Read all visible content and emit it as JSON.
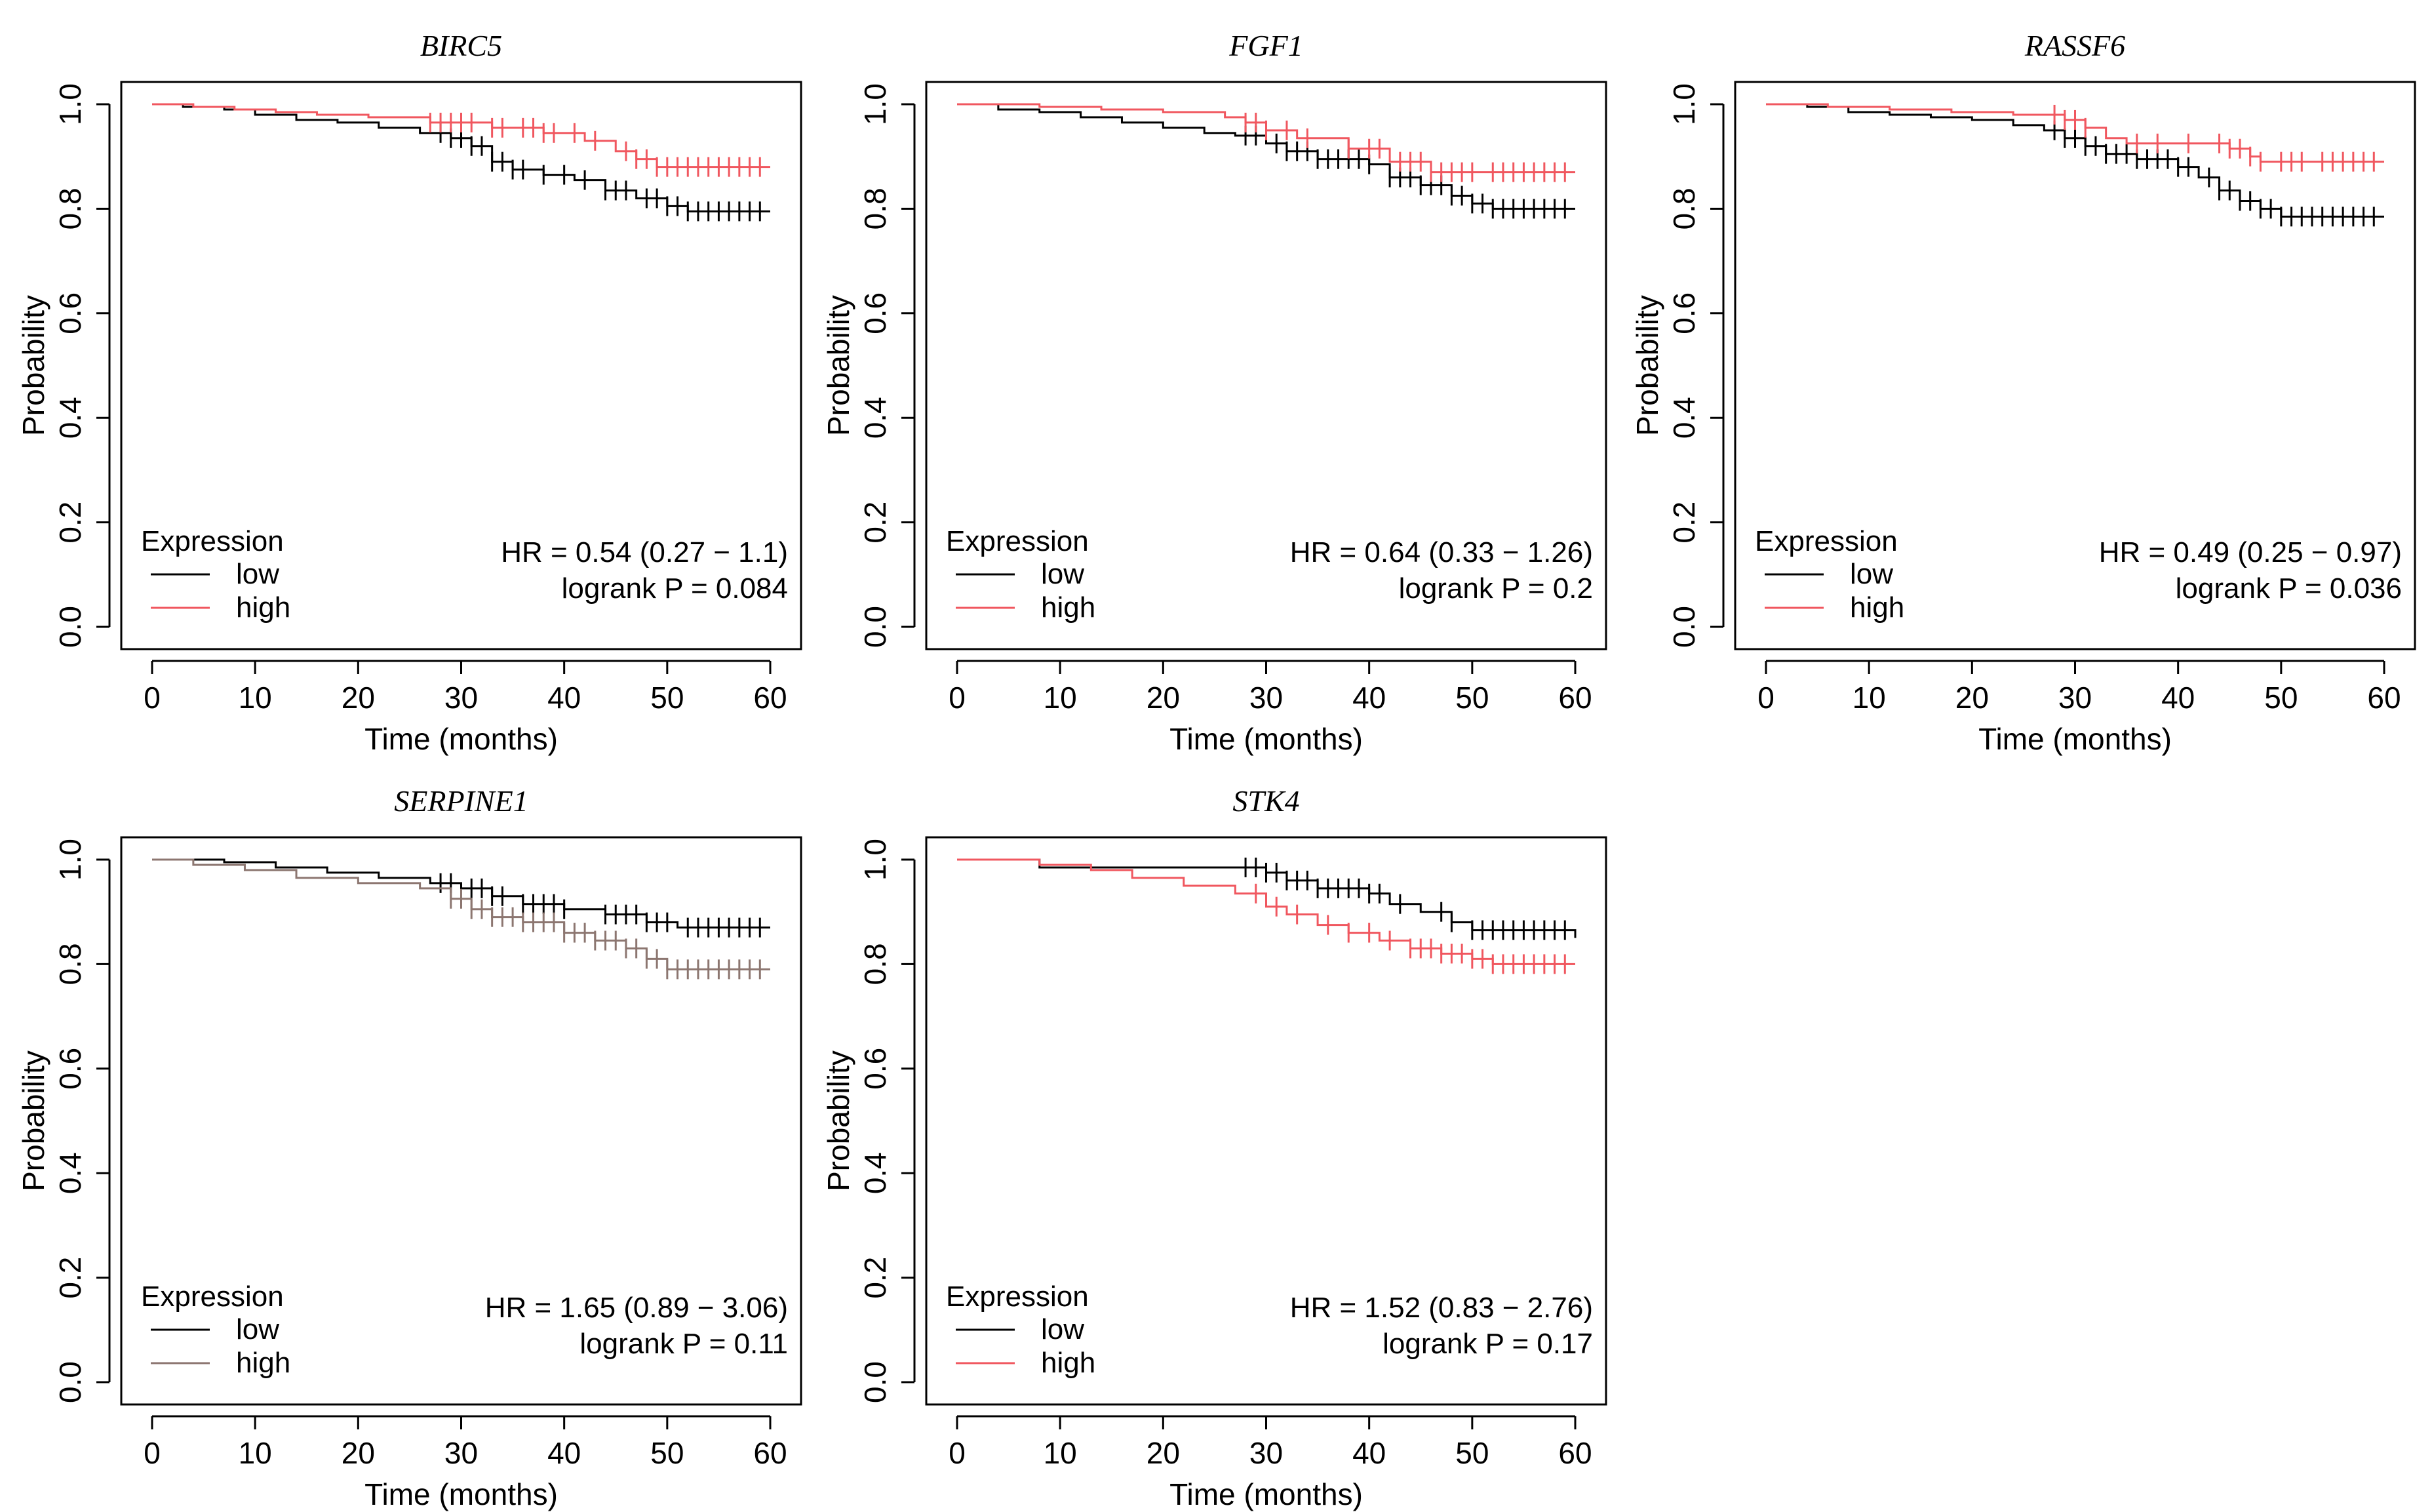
{
  "figure": {
    "colors": {
      "low": "#000000",
      "high_red": "#f0575f",
      "high_brown": "#8c7670"
    },
    "chart_data": [
      {
        "type": "line",
        "kind": "kaplan-meier",
        "title": "BIRC5",
        "xlabel": "Time (months)",
        "ylabel": "Probability",
        "xlim": [
          0,
          60
        ],
        "ylim": [
          0,
          1
        ],
        "xticks": [
          "0",
          "10",
          "20",
          "30",
          "40",
          "50",
          "60"
        ],
        "yticks": [
          "0.0",
          "0.2",
          "0.4",
          "0.6",
          "0.8",
          "1.0"
        ],
        "legend_title": "Expression",
        "legend_position": "bottom-left",
        "hr_text": "HR = 0.54 (0.27 − 1.1)",
        "p_text": "logrank P = 0.084",
        "series": [
          {
            "name": "low",
            "color": "#000000",
            "x": [
              0,
              3,
              7,
              10,
              14,
              18,
              22,
              26,
              29,
              31,
              33,
              35,
              38,
              41,
              44,
              47,
              50,
              52,
              60
            ],
            "y": [
              1.0,
              0.995,
              0.99,
              0.98,
              0.97,
              0.965,
              0.955,
              0.945,
              0.935,
              0.92,
              0.89,
              0.875,
              0.865,
              0.855,
              0.835,
              0.82,
              0.805,
              0.795,
              0.795
            ],
            "censor_x": [
              28,
              29,
              30,
              31,
              32,
              33,
              34,
              35,
              36,
              38,
              40,
              42,
              44,
              45,
              46,
              48,
              49,
              50,
              51,
              52,
              53,
              54,
              55,
              56,
              57,
              58,
              59
            ]
          },
          {
            "name": "high",
            "color": "#f0575f",
            "x": [
              0,
              4,
              8,
              12,
              16,
              21,
              27,
              33,
              38,
              42,
              45,
              47,
              49,
              51,
              60
            ],
            "y": [
              1.0,
              0.995,
              0.99,
              0.985,
              0.98,
              0.975,
              0.965,
              0.955,
              0.945,
              0.93,
              0.91,
              0.895,
              0.88,
              0.88,
              0.88
            ],
            "censor_x": [
              27,
              28,
              29,
              30,
              31,
              33,
              34,
              36,
              37,
              38,
              39,
              41,
              43,
              46,
              47,
              48,
              49,
              50,
              51,
              52,
              53,
              54,
              55,
              56,
              57,
              58,
              59
            ]
          }
        ]
      },
      {
        "type": "line",
        "kind": "kaplan-meier",
        "title": "FGF1",
        "xlabel": "Time (months)",
        "ylabel": "Probability",
        "xlim": [
          0,
          60
        ],
        "ylim": [
          0,
          1
        ],
        "xticks": [
          "0",
          "10",
          "20",
          "30",
          "40",
          "50",
          "60"
        ],
        "yticks": [
          "0.0",
          "0.2",
          "0.4",
          "0.6",
          "0.8",
          "1.0"
        ],
        "legend_title": "Expression",
        "legend_position": "bottom-left",
        "hr_text": "HR = 0.64 (0.33 − 1.26)",
        "p_text": "logrank P = 0.2",
        "series": [
          {
            "name": "low",
            "color": "#000000",
            "x": [
              0,
              4,
              8,
              12,
              16,
              20,
              24,
              27,
              30,
              32,
              35,
              40,
              42,
              45,
              48,
              50,
              52,
              60
            ],
            "y": [
              1.0,
              0.99,
              0.985,
              0.975,
              0.965,
              0.955,
              0.945,
              0.94,
              0.925,
              0.91,
              0.895,
              0.885,
              0.86,
              0.845,
              0.825,
              0.81,
              0.8,
              0.8
            ],
            "censor_x": [
              28,
              29,
              31,
              32,
              33,
              34,
              35,
              36,
              37,
              38,
              39,
              40,
              42,
              43,
              44,
              45,
              46,
              47,
              48,
              49,
              50,
              51,
              52,
              53,
              54,
              55,
              56,
              57,
              58,
              59
            ]
          },
          {
            "name": "high",
            "color": "#f0575f",
            "x": [
              0,
              8,
              14,
              20,
              26,
              28,
              30,
              33,
              38,
              42,
              46,
              60
            ],
            "y": [
              1.0,
              0.995,
              0.99,
              0.985,
              0.975,
              0.965,
              0.95,
              0.935,
              0.915,
              0.89,
              0.87,
              0.87
            ],
            "censor_x": [
              28,
              29,
              30,
              32,
              34,
              38,
              40,
              41,
              43,
              44,
              45,
              46,
              47,
              48,
              49,
              50,
              52,
              53,
              54,
              55,
              56,
              57,
              58,
              59
            ]
          }
        ]
      },
      {
        "type": "line",
        "kind": "kaplan-meier",
        "title": "RASSF6",
        "xlabel": "Time (months)",
        "ylabel": "Probability",
        "xlim": [
          0,
          60
        ],
        "ylim": [
          0,
          1
        ],
        "xticks": [
          "0",
          "10",
          "20",
          "30",
          "40",
          "50",
          "60"
        ],
        "yticks": [
          "0.0",
          "0.2",
          "0.4",
          "0.6",
          "0.8",
          "1.0"
        ],
        "legend_title": "Expression",
        "legend_position": "bottom-left",
        "hr_text": "HR = 0.49 (0.25 − 0.97)",
        "p_text": "logrank P = 0.036",
        "series": [
          {
            "name": "low",
            "color": "#000000",
            "x": [
              0,
              4,
              8,
              12,
              16,
              20,
              24,
              27,
              29,
              31,
              33,
              36,
              40,
              42,
              44,
              46,
              48,
              50,
              60
            ],
            "y": [
              1.0,
              0.995,
              0.985,
              0.98,
              0.975,
              0.97,
              0.96,
              0.95,
              0.935,
              0.92,
              0.905,
              0.895,
              0.88,
              0.86,
              0.835,
              0.815,
              0.8,
              0.785,
              0.785
            ],
            "censor_x": [
              28,
              29,
              30,
              31,
              32,
              33,
              34,
              35,
              36,
              37,
              38,
              39,
              40,
              41,
              43,
              44,
              45,
              46,
              47,
              48,
              49,
              50,
              51,
              52,
              53,
              54,
              55,
              56,
              57,
              58,
              59
            ]
          },
          {
            "name": "high",
            "color": "#f0575f",
            "x": [
              0,
              6,
              12,
              18,
              24,
              29,
              31,
              33,
              35,
              45,
              47,
              48,
              60
            ],
            "y": [
              1.0,
              0.995,
              0.99,
              0.985,
              0.98,
              0.97,
              0.955,
              0.935,
              0.925,
              0.915,
              0.9,
              0.89,
              0.89
            ],
            "censor_x": [
              28,
              29,
              30,
              31,
              36,
              38,
              41,
              44,
              45,
              46,
              47,
              48,
              50,
              51,
              52,
              54,
              55,
              56,
              57,
              58,
              59
            ]
          }
        ]
      },
      {
        "type": "line",
        "kind": "kaplan-meier",
        "title": "SERPINE1",
        "xlabel": "Time (months)",
        "ylabel": "Probability",
        "xlim": [
          0,
          60
        ],
        "ylim": [
          0,
          1
        ],
        "xticks": [
          "0",
          "10",
          "20",
          "30",
          "40",
          "50",
          "60"
        ],
        "yticks": [
          "0.0",
          "0.2",
          "0.4",
          "0.6",
          "0.8",
          "1.0"
        ],
        "legend_title": "Expression",
        "legend_position": "bottom-left",
        "hr_text": "HR = 1.65 (0.89 − 3.06)",
        "p_text": "logrank P = 0.11",
        "series": [
          {
            "name": "low",
            "color": "#000000",
            "x": [
              0,
              7,
              12,
              17,
              22,
              27,
              30,
              33,
              36,
              40,
              44,
              48,
              51,
              60
            ],
            "y": [
              1.0,
              0.995,
              0.985,
              0.975,
              0.965,
              0.955,
              0.945,
              0.93,
              0.915,
              0.905,
              0.895,
              0.88,
              0.87,
              0.87
            ],
            "censor_x": [
              28,
              29,
              31,
              32,
              33,
              34,
              36,
              37,
              38,
              39,
              40,
              44,
              45,
              46,
              47,
              48,
              49,
              50,
              52,
              53,
              54,
              55,
              56,
              57,
              58,
              59
            ]
          },
          {
            "name": "high",
            "color": "#8c7670",
            "x": [
              0,
              4,
              9,
              14,
              20,
              26,
              29,
              31,
              33,
              36,
              40,
              43,
              46,
              48,
              50,
              60
            ],
            "y": [
              1.0,
              0.99,
              0.98,
              0.965,
              0.955,
              0.945,
              0.925,
              0.905,
              0.89,
              0.88,
              0.86,
              0.845,
              0.83,
              0.81,
              0.79,
              0.79
            ],
            "censor_x": [
              29,
              30,
              31,
              32,
              33,
              34,
              35,
              36,
              37,
              38,
              39,
              40,
              41,
              42,
              43,
              44,
              45,
              46,
              47,
              48,
              49,
              50,
              51,
              52,
              53,
              54,
              55,
              56,
              57,
              58,
              59
            ]
          }
        ]
      },
      {
        "type": "line",
        "kind": "kaplan-meier",
        "title": "STK4",
        "xlabel": "Time (months)",
        "ylabel": "Probability",
        "xlim": [
          0,
          60
        ],
        "ylim": [
          0,
          1
        ],
        "xticks": [
          "0",
          "10",
          "20",
          "30",
          "40",
          "50",
          "60"
        ],
        "yticks": [
          "0.0",
          "0.2",
          "0.4",
          "0.6",
          "0.8",
          "1.0"
        ],
        "legend_title": "Expression",
        "legend_position": "bottom-left",
        "hr_text": "HR = 1.52 (0.83 − 2.76)",
        "p_text": "logrank P = 0.17",
        "series": [
          {
            "name": "low",
            "color": "#000000",
            "x": [
              0,
              8,
              30,
              32,
              35,
              40,
              42,
              45,
              48,
              50,
              60
            ],
            "y": [
              1.0,
              0.985,
              0.975,
              0.96,
              0.945,
              0.935,
              0.915,
              0.9,
              0.88,
              0.865,
              0.85
            ],
            "censor_x": [
              28,
              29,
              30,
              31,
              32,
              33,
              34,
              35,
              36,
              37,
              38,
              39,
              40,
              41,
              43,
              47,
              48,
              50,
              51,
              52,
              53,
              54,
              55,
              56,
              57,
              58,
              59
            ]
          },
          {
            "name": "high",
            "color": "#f0575f",
            "x": [
              0,
              8,
              13,
              17,
              22,
              27,
              30,
              32,
              35,
              38,
              41,
              44,
              47,
              50,
              52,
              60
            ],
            "y": [
              1.0,
              0.99,
              0.98,
              0.965,
              0.95,
              0.935,
              0.91,
              0.895,
              0.875,
              0.86,
              0.845,
              0.83,
              0.82,
              0.81,
              0.8,
              0.8
            ],
            "censor_x": [
              29,
              31,
              33,
              36,
              38,
              40,
              42,
              44,
              45,
              46,
              47,
              48,
              49,
              50,
              51,
              52,
              53,
              54,
              55,
              56,
              57,
              58,
              59
            ]
          }
        ]
      }
    ]
  }
}
